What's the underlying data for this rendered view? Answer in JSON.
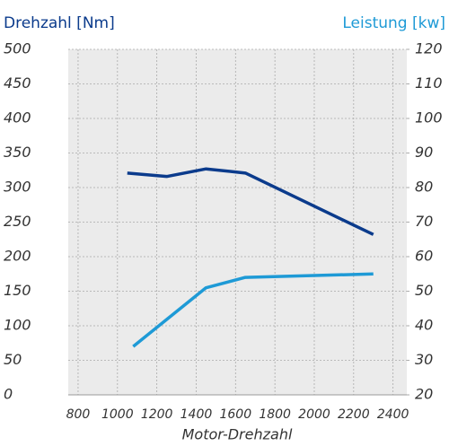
{
  "chart_data": {
    "type": "line",
    "y_label": "Drehzahl [Nm]",
    "y2_label": "Leistung [kw]",
    "x_label": "Motor-Drehzahl",
    "xlim": [
      750,
      2470
    ],
    "xticks": [
      800,
      1000,
      1200,
      1400,
      1600,
      1800,
      2000,
      2200,
      2400
    ],
    "ylim": [
      0,
      500
    ],
    "yticks": [
      0,
      50,
      100,
      150,
      200,
      250,
      300,
      350,
      400,
      450,
      500
    ],
    "y2lim": [
      20,
      120
    ],
    "y2ticks": [
      20,
      30,
      40,
      50,
      60,
      70,
      80,
      90,
      100,
      110,
      120
    ],
    "grid": true,
    "series": [
      {
        "name": "Drehzahl [Nm]",
        "color": "#0b3b8c",
        "x": [
          1050,
          1250,
          1450,
          1650,
          2300
        ],
        "values": [
          321,
          316,
          327,
          321,
          232
        ]
      },
      {
        "name": "Leistung [kw]",
        "color": "#1e9ad6",
        "axis": "y2",
        "x": [
          1080,
          1450,
          1650,
          2300
        ],
        "values": [
          34,
          51,
          54,
          55
        ]
      }
    ]
  }
}
